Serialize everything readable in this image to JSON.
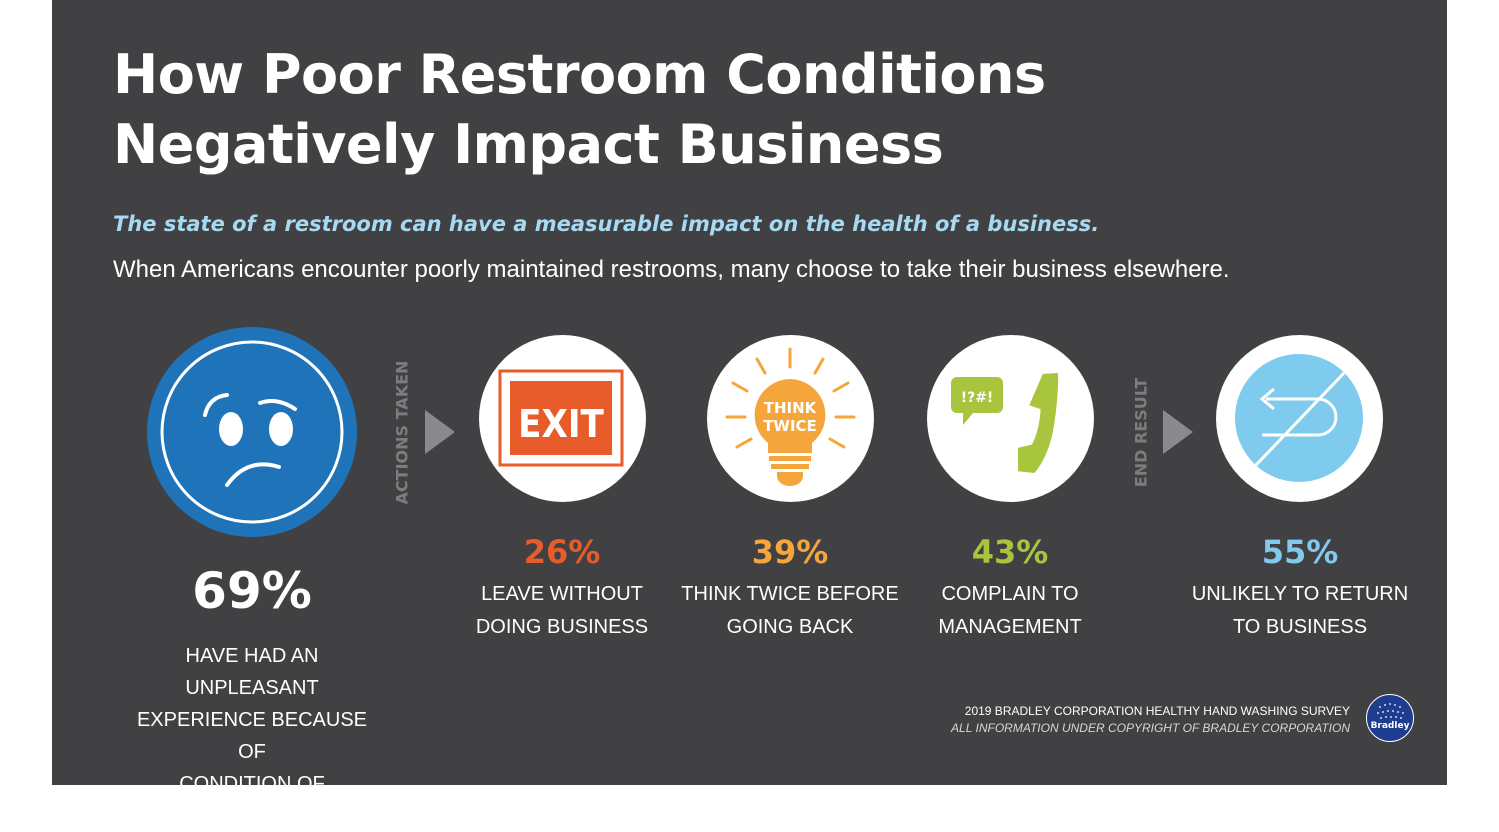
{
  "title": {
    "line1": "How Poor Restroom Conditions",
    "line2": "Negatively Impact Business"
  },
  "subtitle": "The state of a restroom can have a measurable impact on the health of a business.",
  "body": "When Americans encounter poorly maintained restrooms, many choose to take their business elsewhere.",
  "section_labels": {
    "actions": "ACTIONS TAKEN",
    "result": "END RESULT"
  },
  "main_stat": {
    "value": "69%",
    "label_lines": [
      "HAVE HAD AN UNPLEASANT",
      "EXPERIENCE BECAUSE OF",
      "CONDITION OF RESTROOM"
    ],
    "icon": "confused-face-icon",
    "color": "#1f73b9"
  },
  "actions": [
    {
      "value": "26%",
      "label_lines": [
        "LEAVE WITHOUT",
        "DOING BUSINESS"
      ],
      "icon": "exit-sign-icon",
      "icon_text": "EXIT",
      "color": "#e85b2b"
    },
    {
      "value": "39%",
      "label_lines": [
        "THINK TWICE BEFORE",
        "GOING BACK"
      ],
      "icon": "lightbulb-icon",
      "icon_text": [
        "THINK",
        "TWICE"
      ],
      "color": "#f4a53c"
    },
    {
      "value": "43%",
      "label_lines": [
        "COMPLAIN TO",
        "MANAGEMENT"
      ],
      "icon": "phone-complaint-icon",
      "icon_text": "!?#!",
      "color": "#a9c53e"
    }
  ],
  "result": {
    "value": "55%",
    "label_lines": [
      "UNLIKELY TO RETURN",
      "TO BUSINESS"
    ],
    "icon": "no-return-icon",
    "color": "#7fcbee"
  },
  "footer": {
    "line1": "2019 BRADLEY CORPORATION HEALTHY HAND WASHING SURVEY",
    "line2": "ALL INFORMATION UNDER COPYRIGHT OF BRADLEY CORPORATION",
    "logo_text": "Bradley"
  }
}
